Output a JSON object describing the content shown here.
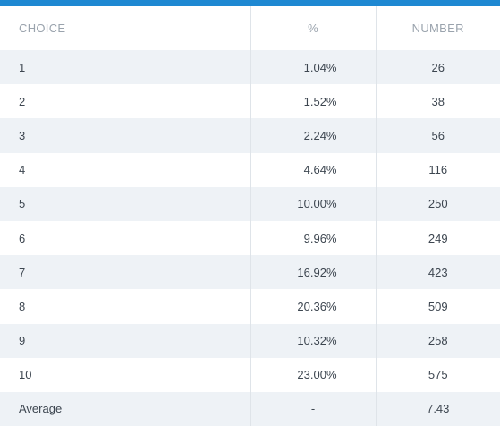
{
  "table": {
    "headers": {
      "choice": "CHOICE",
      "percent": "%",
      "number": "NUMBER"
    },
    "rows": [
      {
        "choice": "1",
        "percent": "1.04%",
        "number": "26"
      },
      {
        "choice": "2",
        "percent": "1.52%",
        "number": "38"
      },
      {
        "choice": "3",
        "percent": "2.24%",
        "number": "56"
      },
      {
        "choice": "4",
        "percent": "4.64%",
        "number": "116"
      },
      {
        "choice": "5",
        "percent": "10.00%",
        "number": "250"
      },
      {
        "choice": "6",
        "percent": "9.96%",
        "number": "249"
      },
      {
        "choice": "7",
        "percent": "16.92%",
        "number": "423"
      },
      {
        "choice": "8",
        "percent": "20.36%",
        "number": "509"
      },
      {
        "choice": "9",
        "percent": "10.32%",
        "number": "258"
      },
      {
        "choice": "10",
        "percent": "23.00%",
        "number": "575"
      }
    ],
    "average": {
      "choice": "Average",
      "percent": "-",
      "number": "7.43"
    }
  },
  "colors": {
    "accent_bar": "#1e88d2",
    "row_stripe": "#eef2f6",
    "header_text": "#9aa3ad",
    "cell_text": "#3d4650"
  }
}
